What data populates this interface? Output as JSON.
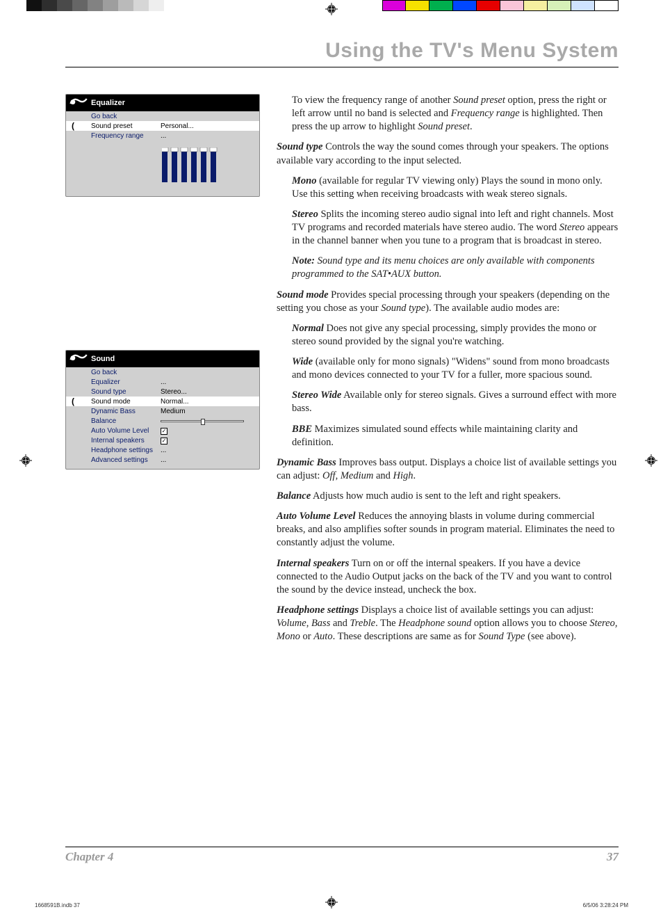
{
  "colorbar_left": [
    "#111111",
    "#2e2e2e",
    "#4a4a4a",
    "#666666",
    "#828282",
    "#9e9e9e",
    "#bababa",
    "#d6d6d6",
    "#eeeeee",
    "#ffffff"
  ],
  "colorbar_right": [
    "#da00da",
    "#f5e100",
    "#00af4e",
    "#0047ff",
    "#e60000",
    "#f9c5d8",
    "#f5efa0",
    "#d6f0b8",
    "#cfe3ff",
    "#ffffff"
  ],
  "page_title": "Using the TV's Menu System",
  "equalizer_menu": {
    "title": "Equalizer",
    "rows": [
      {
        "label": "Go back",
        "value": "",
        "selected": false
      },
      {
        "label": "Sound preset",
        "value": "Personal...",
        "selected": true
      },
      {
        "label": "Frequency range",
        "value": "...",
        "selected": false
      }
    ],
    "bars": [
      0.5,
      0.5,
      0.5,
      0.5,
      0.5,
      0.5
    ]
  },
  "sound_menu": {
    "title": "Sound",
    "rows": [
      {
        "label": "Go back",
        "value": "",
        "selected": false,
        "type": "text"
      },
      {
        "label": "Equalizer",
        "value": "...",
        "selected": false,
        "type": "text"
      },
      {
        "label": "Sound type",
        "value": "Stereo...",
        "selected": false,
        "type": "text"
      },
      {
        "label": "Sound mode",
        "value": "Normal...",
        "selected": true,
        "type": "text"
      },
      {
        "label": "Dynamic Bass",
        "value": "Medium",
        "selected": false,
        "type": "text"
      },
      {
        "label": "Balance",
        "value": "",
        "selected": false,
        "type": "slider",
        "slider_pos": 0.5
      },
      {
        "label": "Auto Volume Level",
        "value": "",
        "selected": false,
        "type": "check",
        "checked": true
      },
      {
        "label": "Internal speakers",
        "value": "",
        "selected": false,
        "type": "check",
        "checked": true
      },
      {
        "label": "Headphone settings",
        "value": "...",
        "selected": false,
        "type": "text"
      },
      {
        "label": "Advanced settings",
        "value": "...",
        "selected": false,
        "type": "text"
      }
    ]
  },
  "body": {
    "p1a": "To view the frequency range of another ",
    "p1b": "Sound preset",
    "p1c": " option, press the right or left arrow until no band is selected and ",
    "p1d": "Frequency range",
    "p1e": " is highlighted. Then press the up arrow to highlight ",
    "p1f": "Sound preset",
    "p1g": ".",
    "sound_type_label": "Sound type",
    "sound_type_text": "   Controls the way the sound comes through your speakers. The options available vary according to the input selected.",
    "mono_label": "Mono",
    "mono_paren": " (available for regular TV viewing only)   ",
    "mono_text": "Plays the sound in mono only. Use this setting when receiving broadcasts with weak stereo signals.",
    "stereo_label": "Stereo",
    "stereo_text": "   Splits the incoming stereo audio signal into left and right channels. Most TV programs and recorded materials have stereo audio. The word ",
    "stereo_word": "Stereo",
    "stereo_text2": " appears in the channel banner when you tune to a program that is broadcast in stereo.",
    "note_label": "Note:",
    "note_text": " Sound type and its menu choices are only available with components programmed to the SAT•AUX button.",
    "sound_mode_label": "Sound mode",
    "sound_mode_text": "    Provides special processing through your speakers (depending on the setting you chose as your ",
    "sound_mode_ref": "Sound type",
    "sound_mode_text2": "). The available audio modes are:",
    "normal_label": "Normal",
    "normal_text": "    Does not give any special processing, simply provides the mono or stereo sound provided by the signal you're watching.",
    "wide_label": "Wide",
    "wide_paren": " (available only for mono signals)   ",
    "wide_text": "\"Widens\" sound from mono broadcasts and mono devices connected to your TV for a fuller, more spacious sound.",
    "stereo_wide_label": "Stereo Wide",
    "stereo_wide_text": "   Available only for stereo signals. Gives a surround effect with more bass.",
    "bbe_label": "BBE",
    "bbe_text": "   Maximizes simulated sound effects while maintaining clarity and definition.",
    "dynamic_bass_label": "Dynamic Bass",
    "dynamic_bass_text": "   Improves bass output. Displays a choice list of available settings you can adjust: ",
    "db_off": "Off",
    "db_med": "Medium",
    "db_high": "High",
    "balance_label": "Balance",
    "balance_text": "   Adjusts how much audio is sent to the left and right speakers.",
    "avl_label": "Auto Volume Level",
    "avl_text": "   Reduces the annoying blasts in volume during commercial breaks, and also amplifies softer sounds in program material. Eliminates the need to constantly adjust the volume.",
    "int_spk_label": "Internal speakers",
    "int_spk_text": "   Turn on or off the internal speakers. If you have a device connected to the Audio Output jacks on the back of the TV and you want to control the sound by the device instead, uncheck the box.",
    "hp_label": "Headphone settings",
    "hp_text": "   Displays a choice list of available settings you can adjust: ",
    "hp_vol": "Volume",
    "hp_bass": "Bass",
    "hp_treb": "Treble",
    "hp_text2": ". The ",
    "hp_sound": "Headphone sound",
    "hp_text3": " option allows you to choose ",
    "hp_stereo": "Stereo, Mono",
    "hp_or": " or ",
    "hp_auto": "Auto",
    "hp_text4": ". These descriptions are same as for ",
    "hp_st": "Sound Type",
    "hp_text5": " (see above)."
  },
  "footer": {
    "chapter": "Chapter 4",
    "page": "37"
  },
  "print_footer": {
    "file": "1668591B.indb   37",
    "datetime": "6/5/06   3:28:24 PM"
  }
}
